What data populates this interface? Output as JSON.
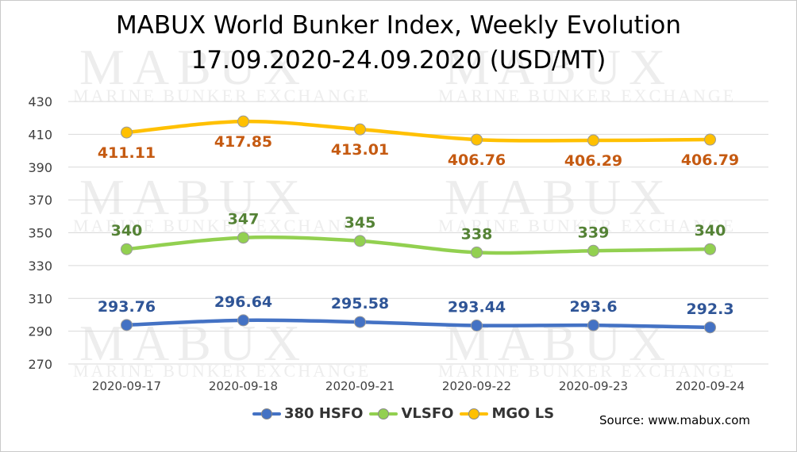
{
  "title": {
    "line1": "MABUX World Bunker Index, Weekly Evolution",
    "line2": "17.09.2020-24.09.2020 (USD/MT)"
  },
  "watermark": {
    "brand": "MABUX",
    "tagline": "MARINE BUNKER EXCHANGE"
  },
  "source": "Source: www.mabux.com",
  "chart_data": {
    "type": "line",
    "categories": [
      "2020-09-17",
      "2020-09-18",
      "2020-09-21",
      "2020-09-22",
      "2020-09-23",
      "2020-09-24"
    ],
    "ylim": [
      270,
      430
    ],
    "yticks": [
      270,
      290,
      310,
      330,
      350,
      370,
      390,
      410,
      430
    ],
    "grid": true,
    "legend_position": "bottom",
    "series": [
      {
        "name": "380 HSFO",
        "color": "#4472C4",
        "label_color": "#2F5597",
        "values": [
          293.76,
          296.64,
          295.58,
          293.44,
          293.6,
          292.3
        ],
        "labels": [
          "293.76",
          "296.64",
          "295.58",
          "293.44",
          "293.6",
          "292.3"
        ]
      },
      {
        "name": "VLSFO",
        "color": "#92D050",
        "label_color": "#548235",
        "values": [
          340,
          347,
          345,
          338,
          339,
          340
        ],
        "labels": [
          "340",
          "347",
          "345",
          "338",
          "339",
          "340"
        ]
      },
      {
        "name": "MGO LS",
        "color": "#FFC000",
        "label_color": "#C55A11",
        "values": [
          411.11,
          417.85,
          413.01,
          406.76,
          406.29,
          406.79
        ],
        "labels": [
          "411.11",
          "417.85",
          "413.01",
          "406.76",
          "406.29",
          "406.79"
        ]
      }
    ]
  }
}
